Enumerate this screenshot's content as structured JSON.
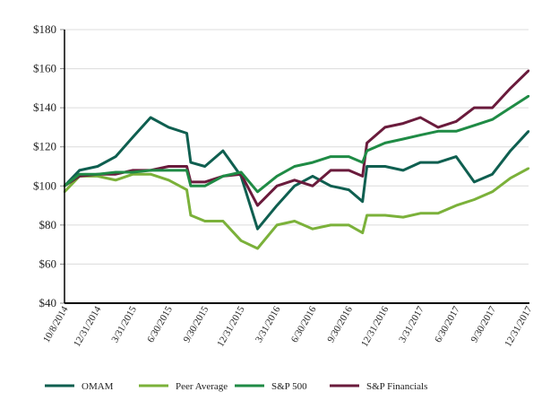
{
  "chart_data": {
    "type": "line",
    "title": "",
    "xlabel": "",
    "ylabel": "",
    "ylim": [
      40,
      180
    ],
    "yticks": [
      "$40",
      "$60",
      "$80",
      "$100",
      "$120",
      "$140",
      "$160",
      "$180"
    ],
    "ytick_values": [
      40,
      60,
      80,
      100,
      120,
      140,
      160,
      180
    ],
    "xticks": [
      "10/8/2014",
      "12/31/2014",
      "3/31/2015",
      "6/30/2015",
      "9/30/2015",
      "12/31/2015",
      "3/31/2016",
      "6/30/2016",
      "9/30/2016",
      "12/31/2016",
      "3/31/2017",
      "6/30/2017",
      "9/30/2017",
      "12/31/2017"
    ],
    "xtick_dates": [
      "2014-10-08",
      "2014-12-31",
      "2015-03-31",
      "2015-06-30",
      "2015-09-30",
      "2015-12-31",
      "2016-03-31",
      "2016-06-30",
      "2016-09-30",
      "2016-12-31",
      "2017-03-31",
      "2017-06-30",
      "2017-09-30",
      "2017-12-31"
    ],
    "grid": true,
    "legend_position": "bottom",
    "x": [
      "2014-10-08",
      "2014-11-15",
      "2014-12-31",
      "2015-02-15",
      "2015-03-31",
      "2015-05-15",
      "2015-06-30",
      "2015-08-15",
      "2015-08-25",
      "2015-09-30",
      "2015-11-15",
      "2015-12-31",
      "2016-02-11",
      "2016-03-31",
      "2016-05-15",
      "2016-06-30",
      "2016-08-15",
      "2016-09-30",
      "2016-11-04",
      "2016-11-15",
      "2016-12-31",
      "2017-02-15",
      "2017-03-31",
      "2017-05-15",
      "2017-06-30",
      "2017-08-15",
      "2017-09-30",
      "2017-11-15",
      "2017-12-31"
    ],
    "series": [
      {
        "name": "OMAM",
        "color": "#0f5f50",
        "values": [
          100,
          108,
          110,
          115,
          125,
          135,
          130,
          127,
          112,
          110,
          118,
          105,
          78,
          90,
          100,
          105,
          100,
          98,
          92,
          110,
          110,
          108,
          112,
          112,
          115,
          102,
          106,
          118,
          128
        ]
      },
      {
        "name": "Peer Average",
        "color": "#7bb13a",
        "values": [
          97,
          105,
          105,
          103,
          106,
          106,
          103,
          98,
          85,
          82,
          82,
          72,
          68,
          80,
          82,
          78,
          80,
          80,
          76,
          85,
          85,
          84,
          86,
          86,
          90,
          93,
          97,
          104,
          109
        ]
      },
      {
        "name": "S&P 500",
        "color": "#1f8b45",
        "values": [
          100,
          106,
          106,
          107,
          107,
          108,
          108,
          108,
          100,
          100,
          105,
          107,
          97,
          105,
          110,
          112,
          115,
          115,
          112,
          118,
          122,
          124,
          126,
          128,
          128,
          131,
          134,
          140,
          146
        ]
      },
      {
        "name": "S&P Financials",
        "color": "#6a1b3c",
        "values": [
          100,
          105,
          106,
          106,
          108,
          108,
          110,
          110,
          102,
          102,
          105,
          106,
          90,
          100,
          103,
          100,
          108,
          108,
          105,
          122,
          130,
          132,
          135,
          130,
          133,
          140,
          140,
          150,
          159
        ]
      }
    ]
  }
}
